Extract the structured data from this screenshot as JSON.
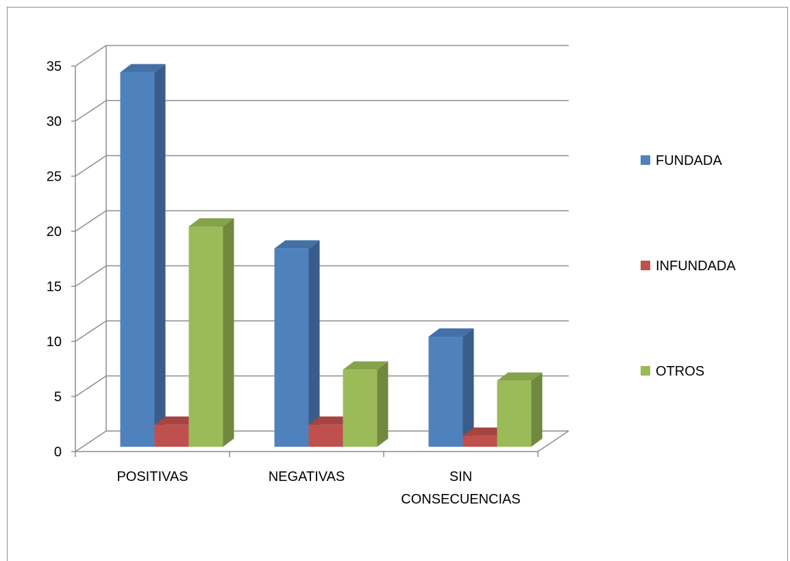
{
  "chart_data": {
    "type": "bar",
    "style": "3d-clustered-column",
    "title": "",
    "xlabel": "",
    "ylabel": "",
    "categories": [
      "POSITIVAS",
      "NEGATIVAS",
      "SIN CONSECUENCIAS"
    ],
    "series": [
      {
        "name": "FUNDADA",
        "values": [
          34,
          18,
          10
        ],
        "color": "#4f81bd",
        "side_color": "#385d8a",
        "top_color": "#4470a8"
      },
      {
        "name": "INFUNDADA",
        "values": [
          2,
          2,
          1
        ],
        "color": "#c0504d",
        "side_color": "#8c3836",
        "top_color": "#a64441"
      },
      {
        "name": "OTROS",
        "values": [
          20,
          7,
          6
        ],
        "color": "#9bbb59",
        "side_color": "#71893f",
        "top_color": "#86a34c"
      }
    ],
    "ylim": [
      0,
      35
    ],
    "yticks": [
      0,
      5,
      10,
      15,
      20,
      25,
      30,
      35
    ],
    "grid": true,
    "legend": "right"
  }
}
